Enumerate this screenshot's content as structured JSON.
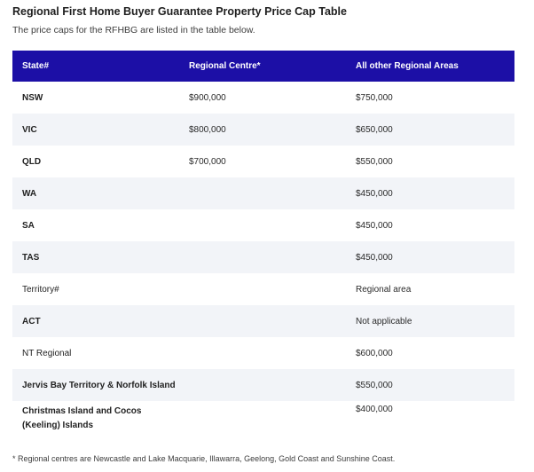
{
  "page": {
    "title": "Regional First Home Buyer Guarantee Property Price Cap Table",
    "subtitle": "The price caps for the RFHBG are listed in the table below.",
    "footnote": "* Regional centres are Newcastle and Lake Macquarie, Illawarra, Geelong, Gold Coast and Sunshine Coast."
  },
  "table": {
    "headers": [
      "State#",
      "Regional Centre*",
      "All other Regional Areas"
    ],
    "header_color": "#1c0fa6",
    "stripe_color": "#f2f4f8",
    "rows": [
      {
        "state": "NSW",
        "centre": "$900,000",
        "other": "$750,000"
      },
      {
        "state": "VIC",
        "centre": "$800,000",
        "other": "$650,000"
      },
      {
        "state": "QLD",
        "centre": "$700,000",
        "other": "$550,000"
      },
      {
        "state": "WA",
        "centre": "",
        "other": "$450,000"
      },
      {
        "state": "SA",
        "centre": "",
        "other": "$450,000"
      },
      {
        "state": "TAS",
        "centre": "",
        "other": "$450,000"
      },
      {
        "state": "Territory#",
        "centre": "",
        "other": "Regional area"
      },
      {
        "state": "ACT",
        "centre": "",
        "other": "Not applicable"
      },
      {
        "state": "NT Regional",
        "centre": "",
        "other": "$600,000"
      },
      {
        "state": "Jervis Bay Territory & Norfolk Island",
        "centre": "",
        "other": "$550,000"
      },
      {
        "state": "Christmas Island and Cocos (Keeling) Islands",
        "centre": "",
        "other": "$400,000"
      }
    ]
  }
}
